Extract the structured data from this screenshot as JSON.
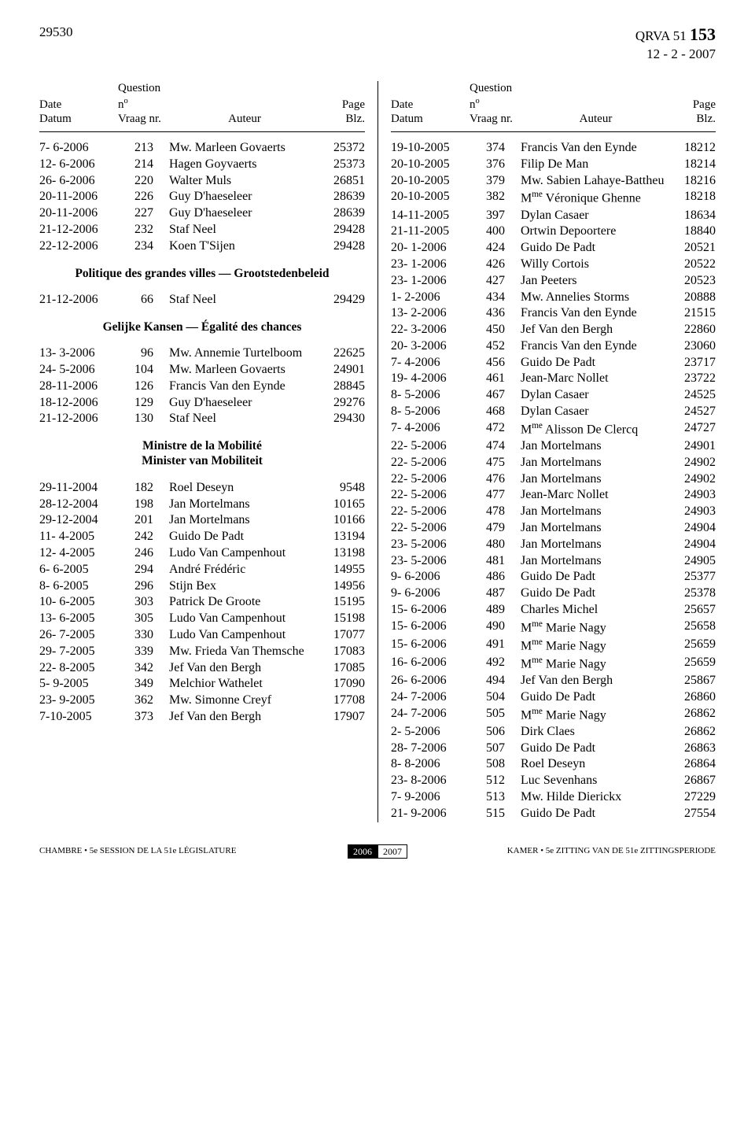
{
  "header": {
    "page_number": "29530",
    "qrva_prefix": "QRVA 51",
    "qrva_number": "153",
    "date_line": "12 - 2 - 2007"
  },
  "column_a_header": {
    "date_fr": "Date",
    "date_nl": "Datum",
    "q_fr": "Question n",
    "q_nl": "Vraag nr.",
    "auteur": "Auteur",
    "page_fr": "Page",
    "page_nl": "Blz."
  },
  "column_b_header": {
    "date_fr": "Date",
    "date_nl": "Datum",
    "q_fr": "Question n",
    "q_nl": "Vraag nr.",
    "auteur": "Auteur",
    "page_fr": "Page",
    "page_nl": "Blz."
  },
  "left_sections": [
    {
      "heading": null,
      "rows": [
        {
          "date": "7-  6-2006",
          "num": "213",
          "author": "Mw. Marleen Govaerts",
          "page": "25372"
        },
        {
          "date": "12-  6-2006",
          "num": "214",
          "author": "Hagen Goyvaerts",
          "page": "25373"
        },
        {
          "date": "26-  6-2006",
          "num": "220",
          "author": "Walter Muls",
          "page": "26851"
        },
        {
          "date": "20-11-2006",
          "num": "226",
          "author": "Guy D'haeseleer",
          "page": "28639"
        },
        {
          "date": "20-11-2006",
          "num": "227",
          "author": "Guy D'haeseleer",
          "page": "28639"
        },
        {
          "date": "21-12-2006",
          "num": "232",
          "author": "Staf Neel",
          "page": "29428"
        },
        {
          "date": "22-12-2006",
          "num": "234",
          "author": "Koen T'Sijen",
          "page": "29428"
        }
      ]
    },
    {
      "heading": "Politique des grandes villes — Grootstedenbeleid",
      "rows": [
        {
          "date": "21-12-2006",
          "num": "66",
          "author": "Staf Neel",
          "page": "29429"
        }
      ]
    },
    {
      "heading": "Gelijke Kansen — Égalité des chances",
      "rows": [
        {
          "date": "13-  3-2006",
          "num": "96",
          "author": "Mw. Annemie Turtelboom",
          "page": "22625"
        },
        {
          "date": "24-  5-2006",
          "num": "104",
          "author": "Mw. Marleen Govaerts",
          "page": "24901"
        },
        {
          "date": "28-11-2006",
          "num": "126",
          "author": "Francis Van den Eynde",
          "page": "28845"
        },
        {
          "date": "18-12-2006",
          "num": "129",
          "author": "Guy D'haeseleer",
          "page": "29276"
        },
        {
          "date": "21-12-2006",
          "num": "130",
          "author": "Staf Neel",
          "page": "29430"
        }
      ]
    },
    {
      "heading": "Ministre de la Mobilité<br>Minister van Mobiliteit",
      "rows": [
        {
          "date": "29-11-2004",
          "num": "182",
          "author": "Roel Deseyn",
          "page": "9548"
        },
        {
          "date": "28-12-2004",
          "num": "198",
          "author": "Jan Mortelmans",
          "page": "10165"
        },
        {
          "date": "29-12-2004",
          "num": "201",
          "author": "Jan Mortelmans",
          "page": "10166"
        },
        {
          "date": "11-  4-2005",
          "num": "242",
          "author": "Guido De Padt",
          "page": "13194"
        },
        {
          "date": "12-  4-2005",
          "num": "246",
          "author": "Ludo Van Campenhout",
          "page": "13198"
        },
        {
          "date": "6-  6-2005",
          "num": "294",
          "author": "André Frédéric",
          "page": "14955"
        },
        {
          "date": "8-  6-2005",
          "num": "296",
          "author": "Stijn Bex",
          "page": "14956"
        },
        {
          "date": "10-  6-2005",
          "num": "303",
          "author": "Patrick De Groote",
          "page": "15195"
        },
        {
          "date": "13-  6-2005",
          "num": "305",
          "author": "Ludo Van Campenhout",
          "page": "15198"
        },
        {
          "date": "26-  7-2005",
          "num": "330",
          "author": "Ludo Van Campenhout",
          "page": "17077"
        },
        {
          "date": "29-  7-2005",
          "num": "339",
          "author": "Mw. Frieda Van Themsche",
          "page": "17083"
        },
        {
          "date": "22-  8-2005",
          "num": "342",
          "author": "Jef Van den Bergh",
          "page": "17085"
        },
        {
          "date": "5-  9-2005",
          "num": "349",
          "author": "Melchior Wathelet",
          "page": "17090"
        },
        {
          "date": "23-  9-2005",
          "num": "362",
          "author": "Mw. Simonne Creyf",
          "page": "17708"
        },
        {
          "date": "7-10-2005",
          "num": "373",
          "author": "Jef Van den Bergh",
          "page": "17907"
        }
      ]
    }
  ],
  "right_sections": [
    {
      "heading": null,
      "rows": [
        {
          "date": "19-10-2005",
          "num": "374",
          "author": "Francis Van den Eynde",
          "page": "18212"
        },
        {
          "date": "20-10-2005",
          "num": "376",
          "author": "Filip De Man",
          "page": "18214"
        },
        {
          "date": "20-10-2005",
          "num": "379",
          "author": "Mw. Sabien Lahaye-Battheu",
          "page": "18216"
        },
        {
          "date": "20-10-2005",
          "num": "382",
          "author": "M<sup>me</sup> Véronique Ghenne",
          "page": "18218"
        },
        {
          "date": "14-11-2005",
          "num": "397",
          "author": "Dylan Casaer",
          "page": "18634"
        },
        {
          "date": "21-11-2005",
          "num": "400",
          "author": "Ortwin Depoortere",
          "page": "18840"
        },
        {
          "date": "20-  1-2006",
          "num": "424",
          "author": "Guido De Padt",
          "page": "20521"
        },
        {
          "date": "23-  1-2006",
          "num": "426",
          "author": "Willy Cortois",
          "page": "20522"
        },
        {
          "date": "23-  1-2006",
          "num": "427",
          "author": "Jan Peeters",
          "page": "20523"
        },
        {
          "date": "1-  2-2006",
          "num": "434",
          "author": "Mw. Annelies Storms",
          "page": "20888"
        },
        {
          "date": "13-  2-2006",
          "num": "436",
          "author": "Francis Van den Eynde",
          "page": "21515"
        },
        {
          "date": "22-  3-2006",
          "num": "450",
          "author": "Jef Van den Bergh",
          "page": "22860"
        },
        {
          "date": "20-  3-2006",
          "num": "452",
          "author": "Francis Van den Eynde",
          "page": "23060"
        },
        {
          "date": "7-  4-2006",
          "num": "456",
          "author": "Guido De Padt",
          "page": "23717"
        },
        {
          "date": "19-  4-2006",
          "num": "461",
          "author": "Jean-Marc Nollet",
          "page": "23722"
        },
        {
          "date": "8-  5-2006",
          "num": "467",
          "author": "Dylan Casaer",
          "page": "24525"
        },
        {
          "date": "8-  5-2006",
          "num": "468",
          "author": "Dylan Casaer",
          "page": "24527"
        },
        {
          "date": "7-  4-2006",
          "num": "472",
          "author": "M<sup>me</sup> Alisson De Clercq",
          "page": "24727"
        },
        {
          "date": "22-  5-2006",
          "num": "474",
          "author": "Jan Mortelmans",
          "page": "24901"
        },
        {
          "date": "22-  5-2006",
          "num": "475",
          "author": "Jan Mortelmans",
          "page": "24902"
        },
        {
          "date": "22-  5-2006",
          "num": "476",
          "author": "Jan Mortelmans",
          "page": "24902"
        },
        {
          "date": "22-  5-2006",
          "num": "477",
          "author": "Jean-Marc Nollet",
          "page": "24903"
        },
        {
          "date": "22-  5-2006",
          "num": "478",
          "author": "Jan Mortelmans",
          "page": "24903"
        },
        {
          "date": "22-  5-2006",
          "num": "479",
          "author": "Jan Mortelmans",
          "page": "24904"
        },
        {
          "date": "23-  5-2006",
          "num": "480",
          "author": "Jan Mortelmans",
          "page": "24904"
        },
        {
          "date": "23-  5-2006",
          "num": "481",
          "author": "Jan Mortelmans",
          "page": "24905"
        },
        {
          "date": "9-  6-2006",
          "num": "486",
          "author": "Guido De Padt",
          "page": "25377"
        },
        {
          "date": "9-  6-2006",
          "num": "487",
          "author": "Guido De Padt",
          "page": "25378"
        },
        {
          "date": "15-  6-2006",
          "num": "489",
          "author": "Charles Michel",
          "page": "25657"
        },
        {
          "date": "15-  6-2006",
          "num": "490",
          "author": "M<sup>me</sup> Marie Nagy",
          "page": "25658"
        },
        {
          "date": "15-  6-2006",
          "num": "491",
          "author": "M<sup>me</sup> Marie Nagy",
          "page": "25659"
        },
        {
          "date": "16-  6-2006",
          "num": "492",
          "author": "M<sup>me</sup> Marie Nagy",
          "page": "25659"
        },
        {
          "date": "26-  6-2006",
          "num": "494",
          "author": "Jef Van den Bergh",
          "page": "25867"
        },
        {
          "date": "24-  7-2006",
          "num": "504",
          "author": "Guido De Padt",
          "page": "26860"
        },
        {
          "date": "24-  7-2006",
          "num": "505",
          "author": "M<sup>me</sup> Marie Nagy",
          "page": "26862"
        },
        {
          "date": "2-  5-2006",
          "num": "506",
          "author": "Dirk Claes",
          "page": "26862"
        },
        {
          "date": "28-  7-2006",
          "num": "507",
          "author": "Guido De Padt",
          "page": "26863"
        },
        {
          "date": "8-  8-2006",
          "num": "508",
          "author": "Roel Deseyn",
          "page": "26864"
        },
        {
          "date": "23-  8-2006",
          "num": "512",
          "author": "Luc Sevenhans",
          "page": "26867"
        },
        {
          "date": "7-  9-2006",
          "num": "513",
          "author": "Mw. Hilde Dierickx",
          "page": "27229"
        },
        {
          "date": "21-  9-2006",
          "num": "515",
          "author": "Guido De Padt",
          "page": "27554"
        }
      ]
    }
  ],
  "footer": {
    "left": "CHAMBRE • 5e SESSION DE LA 51e LÉGISLATURE",
    "year_a": "2006",
    "year_b": "2007",
    "right": "KAMER • 5e ZITTING VAN DE 51e ZITTINGSPERIODE"
  }
}
